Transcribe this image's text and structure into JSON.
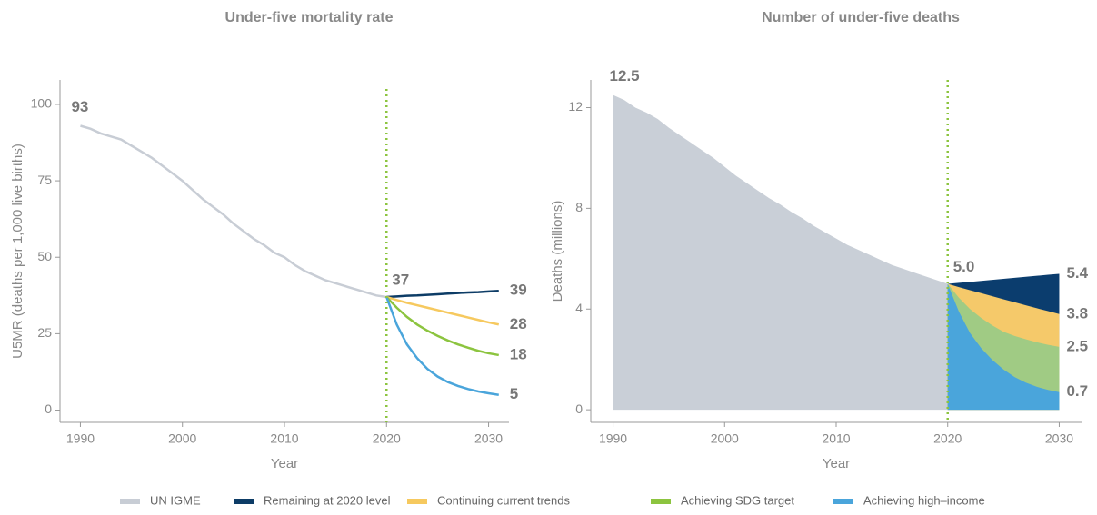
{
  "chart_data": [
    {
      "type": "line",
      "title": "Under-five mortality rate",
      "xlabel": "Year",
      "ylabel": "U5MR (deaths per 1,000 live births)",
      "x": [
        1990,
        1991,
        1992,
        1993,
        1994,
        1995,
        1996,
        1997,
        1998,
        1999,
        2000,
        2001,
        2002,
        2003,
        2004,
        2005,
        2006,
        2007,
        2008,
        2009,
        2010,
        2011,
        2012,
        2013,
        2014,
        2015,
        2016,
        2017,
        2018,
        2019,
        2020,
        2021,
        2022,
        2023,
        2024,
        2025,
        2026,
        2027,
        2028,
        2029,
        2030,
        2031
      ],
      "xlim": [
        1988,
        2032
      ],
      "xticks": [
        1990,
        2000,
        2010,
        2020,
        2030
      ],
      "ylim": [
        -4,
        108
      ],
      "yticks": [
        0,
        25,
        50,
        75,
        100
      ],
      "vline": 2020,
      "vline_color": "#8cc43f",
      "series": [
        {
          "name": "UN IGME",
          "color": "#c8cdd5",
          "values": [
            93,
            92,
            90.5,
            89.5,
            88.5,
            86.5,
            84.5,
            82.5,
            80,
            77.5,
            75,
            72,
            69,
            66.5,
            64,
            61,
            58.5,
            56,
            54,
            51.5,
            50,
            47.5,
            45.5,
            44,
            42.5,
            41.5,
            40.5,
            39.5,
            38.5,
            37.5,
            37,
            null,
            null,
            null,
            null,
            null,
            null,
            null,
            null,
            null,
            null,
            null
          ]
        },
        {
          "name": "Remaining at 2020 level",
          "color": "#0d3c66",
          "values": [
            null,
            null,
            null,
            null,
            null,
            null,
            null,
            null,
            null,
            null,
            null,
            null,
            null,
            null,
            null,
            null,
            null,
            null,
            null,
            null,
            null,
            null,
            null,
            null,
            null,
            null,
            null,
            null,
            null,
            null,
            37,
            37.2,
            37.4,
            37.5,
            37.7,
            37.9,
            38.1,
            38.3,
            38.5,
            38.6,
            38.8,
            39
          ]
        },
        {
          "name": "Continuing current trends",
          "color": "#f6c95f",
          "values": [
            null,
            null,
            null,
            null,
            null,
            null,
            null,
            null,
            null,
            null,
            null,
            null,
            null,
            null,
            null,
            null,
            null,
            null,
            null,
            null,
            null,
            null,
            null,
            null,
            null,
            null,
            null,
            null,
            null,
            null,
            37,
            36,
            35.1,
            34.3,
            33.5,
            32.7,
            31.9,
            31.1,
            30.3,
            29.5,
            28.7,
            28
          ]
        },
        {
          "name": "Achieving SDG target",
          "color": "#8cc43f",
          "values": [
            null,
            null,
            null,
            null,
            null,
            null,
            null,
            null,
            null,
            null,
            null,
            null,
            null,
            null,
            null,
            null,
            null,
            null,
            null,
            null,
            null,
            null,
            null,
            null,
            null,
            null,
            null,
            null,
            null,
            null,
            37,
            33.5,
            30.5,
            28,
            26,
            24.3,
            22.8,
            21.5,
            20.4,
            19.4,
            18.6,
            18
          ]
        },
        {
          "name": "Achieving high–income",
          "color": "#4aa5db",
          "values": [
            null,
            null,
            null,
            null,
            null,
            null,
            null,
            null,
            null,
            null,
            null,
            null,
            null,
            null,
            null,
            null,
            null,
            null,
            null,
            null,
            null,
            null,
            null,
            null,
            null,
            null,
            null,
            null,
            null,
            null,
            37,
            28,
            21.5,
            17,
            13.5,
            11,
            9.2,
            7.9,
            6.9,
            6.1,
            5.5,
            5
          ]
        }
      ]
    },
    {
      "type": "area",
      "title": "Number of under-five deaths",
      "xlabel": "Year",
      "ylabel": "Deaths (millions)",
      "x": [
        1990,
        1991,
        1992,
        1993,
        1994,
        1995,
        1996,
        1997,
        1998,
        1999,
        2000,
        2001,
        2002,
        2003,
        2004,
        2005,
        2006,
        2007,
        2008,
        2009,
        2010,
        2011,
        2012,
        2013,
        2014,
        2015,
        2016,
        2017,
        2018,
        2019,
        2020,
        2021,
        2022,
        2023,
        2024,
        2025,
        2026,
        2027,
        2028,
        2029,
        2030
      ],
      "xlim": [
        1988,
        2032
      ],
      "xticks": [
        1990,
        2000,
        2010,
        2020,
        2030
      ],
      "ylim": [
        -0.5,
        13.1
      ],
      "yticks": [
        0,
        4,
        8,
        12
      ],
      "vline": 2020,
      "vline_color": "#8cc43f",
      "series": [
        {
          "color": "#c9cfd7",
          "values": [
            12.5,
            12.3,
            12,
            11.8,
            11.55,
            11.2,
            10.9,
            10.6,
            10.3,
            10,
            9.65,
            9.3,
            9,
            8.7,
            8.4,
            8.15,
            7.85,
            7.6,
            7.3,
            7.05,
            6.8,
            6.55,
            6.35,
            6.15,
            5.95,
            5.75,
            5.6,
            5.45,
            5.3,
            5.15,
            5,
            null,
            null,
            null,
            null,
            null,
            null,
            null,
            null,
            null,
            null
          ],
          "value_labels": [
            "12.5",
            null,
            null,
            null,
            null,
            null,
            null,
            null,
            null,
            null,
            null,
            null,
            null,
            null,
            null,
            null,
            null,
            null,
            null,
            null,
            null,
            null,
            null,
            null,
            null,
            null,
            null,
            null,
            null,
            null,
            "5.0",
            null,
            null,
            null,
            null,
            null,
            null,
            null,
            null,
            null,
            null
          ]
        },
        {
          "color": "#0b3d6e",
          "values": [
            null,
            null,
            null,
            null,
            null,
            null,
            null,
            null,
            null,
            null,
            null,
            null,
            null,
            null,
            null,
            null,
            null,
            null,
            null,
            null,
            null,
            null,
            null,
            null,
            null,
            null,
            null,
            null,
            null,
            null,
            5,
            5.04,
            5.08,
            5.12,
            5.16,
            5.2,
            5.24,
            5.28,
            5.32,
            5.36,
            5.4
          ]
        },
        {
          "color": "#f5c96a",
          "values": [
            null,
            null,
            null,
            null,
            null,
            null,
            null,
            null,
            null,
            null,
            null,
            null,
            null,
            null,
            null,
            null,
            null,
            null,
            null,
            null,
            null,
            null,
            null,
            null,
            null,
            null,
            null,
            null,
            null,
            null,
            5,
            4.87,
            4.75,
            4.63,
            4.51,
            4.39,
            4.27,
            4.15,
            4.03,
            3.92,
            3.8
          ]
        },
        {
          "color": "#a0cb84",
          "values": [
            null,
            null,
            null,
            null,
            null,
            null,
            null,
            null,
            null,
            null,
            null,
            null,
            null,
            null,
            null,
            null,
            null,
            null,
            null,
            null,
            null,
            null,
            null,
            null,
            null,
            null,
            null,
            null,
            null,
            null,
            5,
            4.45,
            4,
            3.65,
            3.35,
            3.1,
            2.93,
            2.8,
            2.68,
            2.58,
            2.5
          ]
        },
        {
          "color": "#4aa5db",
          "values": [
            null,
            null,
            null,
            null,
            null,
            null,
            null,
            null,
            null,
            null,
            null,
            null,
            null,
            null,
            null,
            null,
            null,
            null,
            null,
            null,
            null,
            null,
            null,
            null,
            null,
            null,
            null,
            null,
            null,
            null,
            5,
            3.9,
            3.05,
            2.45,
            1.98,
            1.6,
            1.3,
            1.08,
            0.91,
            0.79,
            0.7
          ]
        }
      ]
    }
  ]
}
